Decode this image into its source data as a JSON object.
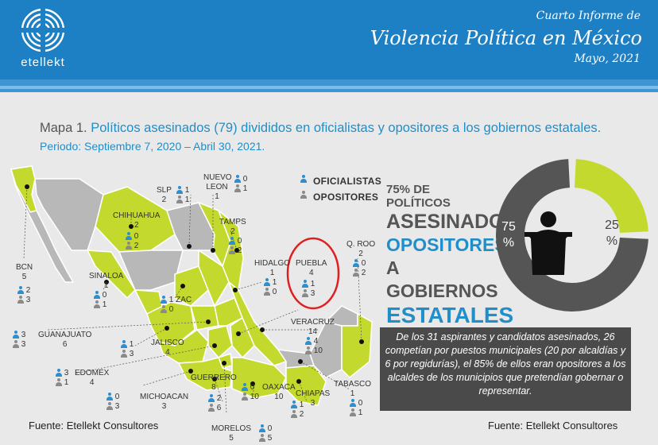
{
  "header": {
    "logo_text": "etellekt",
    "superscript": "Cuarto Informe de",
    "title": "Violencia Política en México",
    "date": "Mayo, 2021"
  },
  "subtitle": {
    "label": "Mapa 1.",
    "text": "Políticos asesinados (79)  divididos en oficialistas y opositores a los gobiernos estatales.",
    "period": "Periodo: Septiembre 7, 2020 – Abril 30, 2021."
  },
  "legend": {
    "oficialistas": "OFICIALISTAS",
    "opositores": "OPOSITORES"
  },
  "states": [
    {
      "id": "bcn",
      "name": "BCN",
      "total": "5",
      "of": "2",
      "op": "3"
    },
    {
      "id": "chihuahua",
      "name": "CHIHUAHUA",
      "total": "2",
      "of": "0",
      "op": "2"
    },
    {
      "id": "sinaloa",
      "name": "SINALOA",
      "total": "1",
      "of": "0",
      "op": "1"
    },
    {
      "id": "slp",
      "name": "SLP",
      "total": "2",
      "of": "1",
      "op": "1"
    },
    {
      "id": "nuevoleon",
      "name": "NUEVO LEON",
      "total": "1",
      "of": "0",
      "op": "1"
    },
    {
      "id": "tamps",
      "name": "TAMPS",
      "total": "2",
      "of": "0",
      "op": "2"
    },
    {
      "id": "hidalgo",
      "name": "HIDALGO",
      "total": "1",
      "of": "1",
      "op": "0"
    },
    {
      "id": "puebla",
      "name": "PUEBLA",
      "total": "4",
      "of": "1",
      "op": "3"
    },
    {
      "id": "qroo",
      "name": "Q. ROO",
      "total": "2",
      "of": "0",
      "op": "2"
    },
    {
      "id": "zac",
      "name": "ZAC",
      "total": "",
      "of": "1",
      "op": "0"
    },
    {
      "id": "guanajuato",
      "name": "GUANAJUATO",
      "total": "6",
      "of": "3",
      "op": "3"
    },
    {
      "id": "jalisco",
      "name": "JALISCO",
      "total": "4",
      "of": "1",
      "op": "3"
    },
    {
      "id": "veracruz",
      "name": "VERACRUZ",
      "total": "14",
      "of": "4",
      "op": "10"
    },
    {
      "id": "edomex",
      "name": "EDOMEX",
      "total": "4",
      "of": "3",
      "op": "1"
    },
    {
      "id": "michoacan",
      "name": "MICHOACAN",
      "total": "3",
      "of": "0",
      "op": "3"
    },
    {
      "id": "guerrero",
      "name": "GUERRERO",
      "total": "8",
      "of": "2",
      "op": "6"
    },
    {
      "id": "oaxaca",
      "name": "OAXACA",
      "total": "10",
      "of": "0",
      "op": "10"
    },
    {
      "id": "chiapas",
      "name": "CHIAPAS",
      "total": "3",
      "of": "1",
      "op": "2"
    },
    {
      "id": "tabasco",
      "name": "TABASCO",
      "total": "1",
      "of": "0",
      "op": "1"
    },
    {
      "id": "morelos",
      "name": "MORELOS",
      "total": "5",
      "of": "0",
      "op": "5"
    }
  ],
  "big_figure": {
    "line1": "75% DE POLÍTICOS",
    "line2": "ASESINADOS,",
    "line3": "OPOSITORES",
    "line4": "A GOBIERNOS",
    "line5": "ESTATALES"
  },
  "donut": {
    "opositores_pct": 75,
    "oficialistas_pct": 25,
    "opositores_label": "75 %",
    "oficialistas_label": "25 %",
    "color_opositores": "#555555",
    "color_oficialistas": "#c4d92e"
  },
  "note": "De los 31 aspirantes y candidatos asesinados, 26 competían por puestos municipales (20 por alcaldías y 6 por regidurías), el 85% de ellos eran opositores a los alcaldes de los municipios que pretendían gobernar o representar.",
  "sources": {
    "left": "Fuente: Etellekt Consultores",
    "right": "Fuente: Etellekt Consultores"
  },
  "colors": {
    "brand_blue": "#1d7fc4",
    "map_green": "#c4d92e",
    "map_grey": "#b8b8b8",
    "highlight_red": "#e02020"
  }
}
